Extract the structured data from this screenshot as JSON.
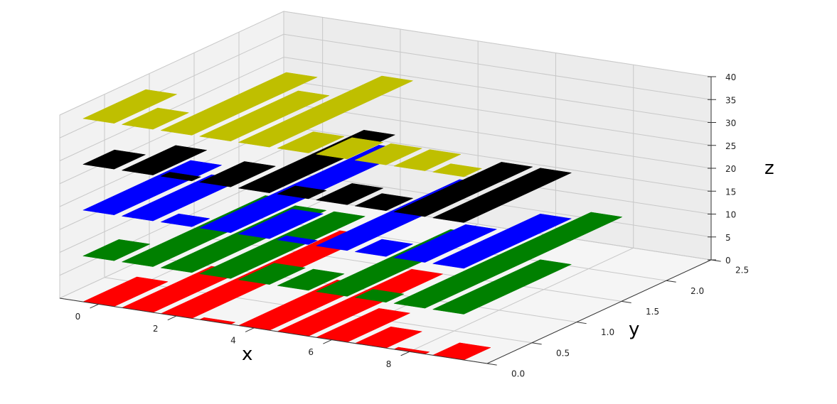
{
  "chart_data": {
    "type": "bar",
    "projection": "3d",
    "xlabel": "x",
    "ylabel": "y",
    "zlabel": "z",
    "xticks": [
      "0",
      "2",
      "4",
      "6",
      "8"
    ],
    "yticks": [
      "0.0",
      "0.5",
      "1.0",
      "1.5",
      "2.0",
      "2.5"
    ],
    "zticks": [
      "0",
      "5",
      "10",
      "15",
      "20",
      "25",
      "30",
      "35",
      "40"
    ],
    "xlim": [
      -1,
      10
    ],
    "ylim": [
      0,
      2.5
    ],
    "zlim": [
      0,
      40
    ],
    "grid": true,
    "series": [
      {
        "color": "#ff0000",
        "z": 0,
        "values": [
          0.6,
          1.0,
          2.0,
          0.05,
          1.1,
          1.5,
          0.7,
          0.4,
          0.05,
          0.3
        ]
      },
      {
        "color": "#008000",
        "z": 10,
        "values": [
          0.4,
          1.6,
          1.5,
          1.5,
          0.4,
          0.4,
          1.5,
          0.2,
          2.2,
          1.2
        ]
      },
      {
        "color": "#0000ff",
        "z": 20,
        "values": [
          1.2,
          1.0,
          0.2,
          2.0,
          0.6,
          0.1,
          1.6,
          0.3,
          0.8,
          1.2
        ]
      },
      {
        "color": "#000000",
        "z": 30,
        "values": [
          0.35,
          0.6,
          0.1,
          0.5,
          1.4,
          0.2,
          0.4,
          0.3,
          1.2,
          1.2
        ]
      },
      {
        "color": "#bfbf00",
        "z": 40,
        "values": [
          0.7,
          0.4,
          1.4,
          1.1,
          1.6,
          0.4,
          0.4,
          0.4,
          0.4,
          0.2
        ]
      }
    ]
  }
}
